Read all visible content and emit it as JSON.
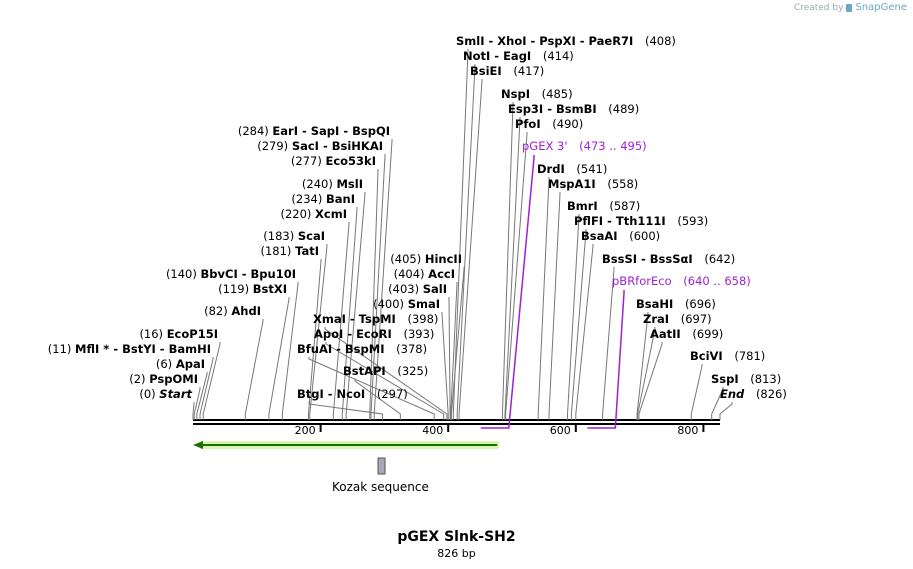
{
  "watermark": {
    "text": "Created by",
    "brand": "SnapGene"
  },
  "map": {
    "title": "pGEX Slnk-SH2",
    "length_label": "826 bp",
    "total_bp": 826,
    "ticks": [
      "200",
      "400",
      "600",
      "800"
    ],
    "tick_values": [
      200,
      400,
      600,
      800
    ],
    "colors": {
      "primer": "#a020d0",
      "orf_fill": "#d9f5b3",
      "orf_stroke": "#1e6e00",
      "feature": "#a8a8b8"
    }
  },
  "features": [
    {
      "name": "Kozak sequence",
      "start": 290,
      "end": 300
    }
  ],
  "orf": {
    "start": 0,
    "end": 480,
    "direction": "reverse"
  },
  "labels": [
    {
      "text": "(0) ",
      "name": "Start",
      "italic": true,
      "pos": 0
    },
    {
      "text": "(2) ",
      "name": "PspOMI",
      "pos": 2
    },
    {
      "text": "(6) ",
      "name": "ApaI",
      "pos": 6
    },
    {
      "text": "(11) ",
      "name": "MflI * - BstYI - BamHI",
      "pos": 11
    },
    {
      "text": "(16) ",
      "name": "EcoP15I",
      "pos": 16
    },
    {
      "text": "(82) ",
      "name": "AhdI",
      "pos": 82
    },
    {
      "text": "(119) ",
      "name": "BstXI",
      "pos": 119
    },
    {
      "text": "(140) ",
      "name": "BbvCI - Bpu10I",
      "pos": 140
    },
    {
      "text": "(181) ",
      "name": "TatI",
      "pos": 181
    },
    {
      "text": "(183) ",
      "name": "ScaI",
      "pos": 183
    },
    {
      "text": "(220) ",
      "name": "XcmI",
      "pos": 220
    },
    {
      "text": "(234) ",
      "name": "BanI",
      "pos": 234
    },
    {
      "text": "(240) ",
      "name": "MslI",
      "pos": 240
    },
    {
      "text": "(277) ",
      "name": "Eco53kI",
      "pos": 277
    },
    {
      "text": "(279) ",
      "name": "SacI - BsiHKAI",
      "pos": 279
    },
    {
      "text": "(284) ",
      "name": "EarI - SapI - BspQI",
      "pos": 284
    },
    {
      "text": "(297) ",
      "name": "BtgI - NcoI",
      "pos": 297
    },
    {
      "text": "(325) ",
      "name": "BstAPI",
      "pos": 325
    },
    {
      "text": "(378) ",
      "name": "BfuAI - BspMI",
      "pos": 378
    },
    {
      "text": "(393) ",
      "name": "ApoI - EcoRI",
      "pos": 393
    },
    {
      "text": "(398) ",
      "name": "XmaI - TspMI",
      "pos": 398
    },
    {
      "text": "(400) ",
      "name": "SmaI",
      "pos": 400
    },
    {
      "text": "(403) ",
      "name": "SalI",
      "pos": 403
    },
    {
      "text": "(404) ",
      "name": "AccI",
      "pos": 404
    },
    {
      "text": "(405) ",
      "name": "HincII",
      "pos": 405
    },
    {
      "text": "(408)",
      "name": "SmlI - XhoI - PspXI - PaeR7I",
      "pos": 408
    },
    {
      "text": "(414)",
      "name": "NotI - EagI",
      "pos": 414
    },
    {
      "text": "(417)",
      "name": "BsiEI",
      "pos": 417
    },
    {
      "text": "(473 .. 495)",
      "name": "pGEX 3'",
      "primer": true,
      "pos": 473
    },
    {
      "text": "(485)",
      "name": "NspI",
      "pos": 485
    },
    {
      "text": "(489)",
      "name": "Esp3I - BsmBI",
      "pos": 489
    },
    {
      "text": "(490)",
      "name": "PfoI",
      "pos": 490
    },
    {
      "text": "(541)",
      "name": "DrdI",
      "pos": 541
    },
    {
      "text": "(558)",
      "name": "MspA1I",
      "pos": 558
    },
    {
      "text": "(587)",
      "name": "BmrI",
      "pos": 587
    },
    {
      "text": "(593)",
      "name": "PflFI - Tth111I",
      "pos": 593
    },
    {
      "text": "(600)",
      "name": "BsaAI",
      "pos": 600
    },
    {
      "text": "(640 .. 658)",
      "name": "pBRforEco",
      "primer": true,
      "pos": 640
    },
    {
      "text": "(642)",
      "name": "BssSI - BssSαI",
      "pos": 642
    },
    {
      "text": "(696)",
      "name": "BsaHI",
      "pos": 696
    },
    {
      "text": "(697)",
      "name": "ZraI",
      "pos": 697
    },
    {
      "text": "(699)",
      "name": "AatII",
      "pos": 699
    },
    {
      "text": "(781)",
      "name": "BciVI",
      "pos": 781
    },
    {
      "text": "(813)",
      "name": "SspI",
      "pos": 813
    },
    {
      "text": "(826)",
      "name": "End",
      "italic": true,
      "pos": 826
    }
  ]
}
